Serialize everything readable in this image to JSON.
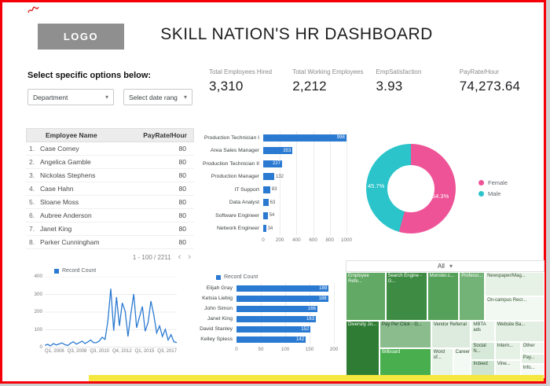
{
  "page": {
    "logo": "LOGO",
    "title": "SKILL NATION'S  HR DASHBOARD"
  },
  "filters": {
    "label": "Select specific options below:",
    "department": "Department",
    "date_range": "Select date rang"
  },
  "kpis": [
    {
      "label": "Total Employees Hired",
      "value": "3,310"
    },
    {
      "label": "Total Working Employees",
      "value": "2,212"
    },
    {
      "label": "EmpSatisfaction",
      "value": "3.93"
    },
    {
      "label": "PayRate/Hour",
      "value": "74,273.64"
    }
  ],
  "employee_table": {
    "columns": [
      "Employee Name",
      "PayRate/Hour"
    ],
    "rows": [
      {
        "index": "1.",
        "name": "Case Corney",
        "rate": "80"
      },
      {
        "index": "2.",
        "name": "Angelica Gamble",
        "rate": "80"
      },
      {
        "index": "3.",
        "name": "Nickolas Stephens",
        "rate": "80"
      },
      {
        "index": "4.",
        "name": "Case Hahn",
        "rate": "80"
      },
      {
        "index": "5.",
        "name": "Sloane Moss",
        "rate": "80"
      },
      {
        "index": "6.",
        "name": "Aubree Anderson",
        "rate": "80"
      },
      {
        "index": "7.",
        "name": "Janet King",
        "rate": "80"
      },
      {
        "index": "8.",
        "name": "Parker Cunningham",
        "rate": "80"
      }
    ],
    "pagination": "1 - 100 / 2211"
  },
  "colors": {
    "accent_blue": "#2a7ad2",
    "female_pink": "#ee5397",
    "male_teal": "#2bc4cb",
    "border_red": "#f40009",
    "strip_yellow": "#f5e73e"
  },
  "chart_data": [
    {
      "id": "job-title-bar",
      "type": "bar",
      "orientation": "horizontal",
      "categories": [
        "Production Technician I",
        "Area Sales Manager",
        "Production Technician II",
        "Production Manager",
        "IT Support",
        "Data Analyst",
        "Software Engineer",
        "Network Engineer"
      ],
      "values": [
        998,
        353,
        227,
        132,
        83,
        63,
        54,
        34
      ],
      "xlim": [
        0,
        1000
      ],
      "xticks": [
        0,
        200,
        400,
        600,
        800,
        1000
      ],
      "bar_color": "#2a7ad2"
    },
    {
      "id": "gender-donut",
      "type": "pie",
      "labels": [
        "Female",
        "Male"
      ],
      "values": [
        54.3,
        45.7
      ],
      "slice_labels": [
        "54.3%",
        "45.7%"
      ],
      "colors": [
        "#ee5397",
        "#2bc4cb"
      ],
      "legend_position": "right"
    },
    {
      "id": "record-line",
      "type": "line",
      "series_name": "Record Count",
      "x_tick_labels": [
        "Q1, 2006",
        "Q3, 2008",
        "Q3, 2010",
        "Q4, 2012",
        "Q1, 2015",
        "Q3, 2017"
      ],
      "values": [
        12,
        18,
        9,
        22,
        14,
        20,
        26,
        16,
        11,
        24,
        32,
        19,
        27,
        36,
        22,
        31,
        42,
        27,
        27,
        37,
        58,
        46,
        150,
        332,
        95,
        285,
        122,
        252,
        205,
        62,
        192,
        302,
        112,
        172,
        232,
        92,
        142,
        262,
        182,
        82,
        122,
        62,
        102,
        42,
        72,
        32,
        28
      ],
      "ylim": [
        0,
        400
      ],
      "yticks": [
        0,
        100,
        200,
        300,
        400
      ],
      "line_color": "#2a7ad2"
    },
    {
      "id": "top-employees-bar",
      "type": "bar",
      "orientation": "horizontal",
      "series_name": "Record Count",
      "categories": [
        "Elijah Gray",
        "Ketsia Liebig",
        "John Simon",
        "Janet King",
        "David Stanley",
        "Kelley Spiess"
      ],
      "values": [
        189,
        188,
        166,
        163,
        152,
        142
      ],
      "xlim": [
        0,
        200
      ],
      "xticks": [
        0,
        50,
        100,
        150,
        200
      ],
      "bar_color": "#2a7ad2"
    },
    {
      "id": "recruitment-treemap",
      "type": "treemap",
      "control_label": "All",
      "cells": [
        {
          "label": "Employee Refe...",
          "x": 0,
          "y": 0,
          "w": 20,
          "h": 46,
          "bg": "#61a965",
          "fg": "#ffffff"
        },
        {
          "label": "Search Engine - G...",
          "x": 20,
          "y": 0,
          "w": 21,
          "h": 46,
          "bg": "#3e8c43",
          "fg": "#ffffff"
        },
        {
          "label": "Monster.c...",
          "x": 41,
          "y": 0,
          "w": 16,
          "h": 46,
          "bg": "#55a15a",
          "fg": "#ffffff"
        },
        {
          "label": "Professi...",
          "x": 57,
          "y": 0,
          "w": 13,
          "h": 46,
          "bg": "#74b377",
          "fg": "#ffffff"
        },
        {
          "label": "Newspaper/Mag...",
          "x": 70,
          "y": 0,
          "w": 30,
          "h": 23,
          "bg": "#e7f2e7",
          "fg": "#33522f"
        },
        {
          "label": "On-campus Recr...",
          "x": 70,
          "y": 23,
          "w": 30,
          "h": 23,
          "bg": "#f2f8f2",
          "fg": "#33522f"
        },
        {
          "label": "Diversity Jo...",
          "x": 0,
          "y": 46,
          "w": 17,
          "h": 54,
          "bg": "#2f7d34",
          "fg": "#ffffff"
        },
        {
          "label": "Pay Per Click - G...",
          "x": 17,
          "y": 46,
          "w": 26,
          "h": 26,
          "bg": "#8abc8d",
          "fg": "#1e3a20"
        },
        {
          "label": "Vendor Referral",
          "x": 43,
          "y": 46,
          "w": 20,
          "h": 26,
          "bg": "#dcebdd",
          "fg": "#2d4b2e"
        },
        {
          "label": "MBTA ads",
          "x": 63,
          "y": 46,
          "w": 12,
          "h": 20,
          "bg": "#eaf4ea",
          "fg": "#2d4b2e"
        },
        {
          "label": "Website Ba...",
          "x": 75,
          "y": 46,
          "w": 25,
          "h": 20,
          "bg": "#e2efe2",
          "fg": "#2d4b2e"
        },
        {
          "label": "Billboard",
          "x": 17,
          "y": 72,
          "w": 26,
          "h": 28,
          "bg": "#49af4e",
          "fg": "#ffffff"
        },
        {
          "label": "Word of...",
          "x": 43,
          "y": 72,
          "w": 11,
          "h": 28,
          "bg": "#e8f3e8",
          "fg": "#2d4b2e"
        },
        {
          "label": "Careerb...",
          "x": 54,
          "y": 72,
          "w": 9,
          "h": 28,
          "bg": "#f3f9f3",
          "fg": "#2d4b2e"
        },
        {
          "label": "Social N...",
          "x": 63,
          "y": 66,
          "w": 12,
          "h": 17,
          "bg": "#d7e9d8",
          "fg": "#2d4b2e"
        },
        {
          "label": "Indeed",
          "x": 63,
          "y": 83,
          "w": 12,
          "h": 17,
          "bg": "#cfe4d0",
          "fg": "#2d4b2e"
        },
        {
          "label": "Intern...",
          "x": 75,
          "y": 66,
          "w": 13,
          "h": 17,
          "bg": "#e6f1e6",
          "fg": "#2d4b2e"
        },
        {
          "label": "Vine...",
          "x": 75,
          "y": 83,
          "w": 13,
          "h": 17,
          "bg": "#eef6ee",
          "fg": "#2d4b2e"
        },
        {
          "label": "Other",
          "x": 88,
          "y": 66,
          "w": 12,
          "h": 11,
          "bg": "#f0f7f0",
          "fg": "#2d4b2e"
        },
        {
          "label": "Pay...",
          "x": 88,
          "y": 77,
          "w": 12,
          "h": 10,
          "bg": "#e4f0e4",
          "fg": "#2d4b2e"
        },
        {
          "label": "Info...",
          "x": 88,
          "y": 87,
          "w": 12,
          "h": 13,
          "bg": "#f5faf5",
          "fg": "#2d4b2e"
        }
      ]
    }
  ]
}
